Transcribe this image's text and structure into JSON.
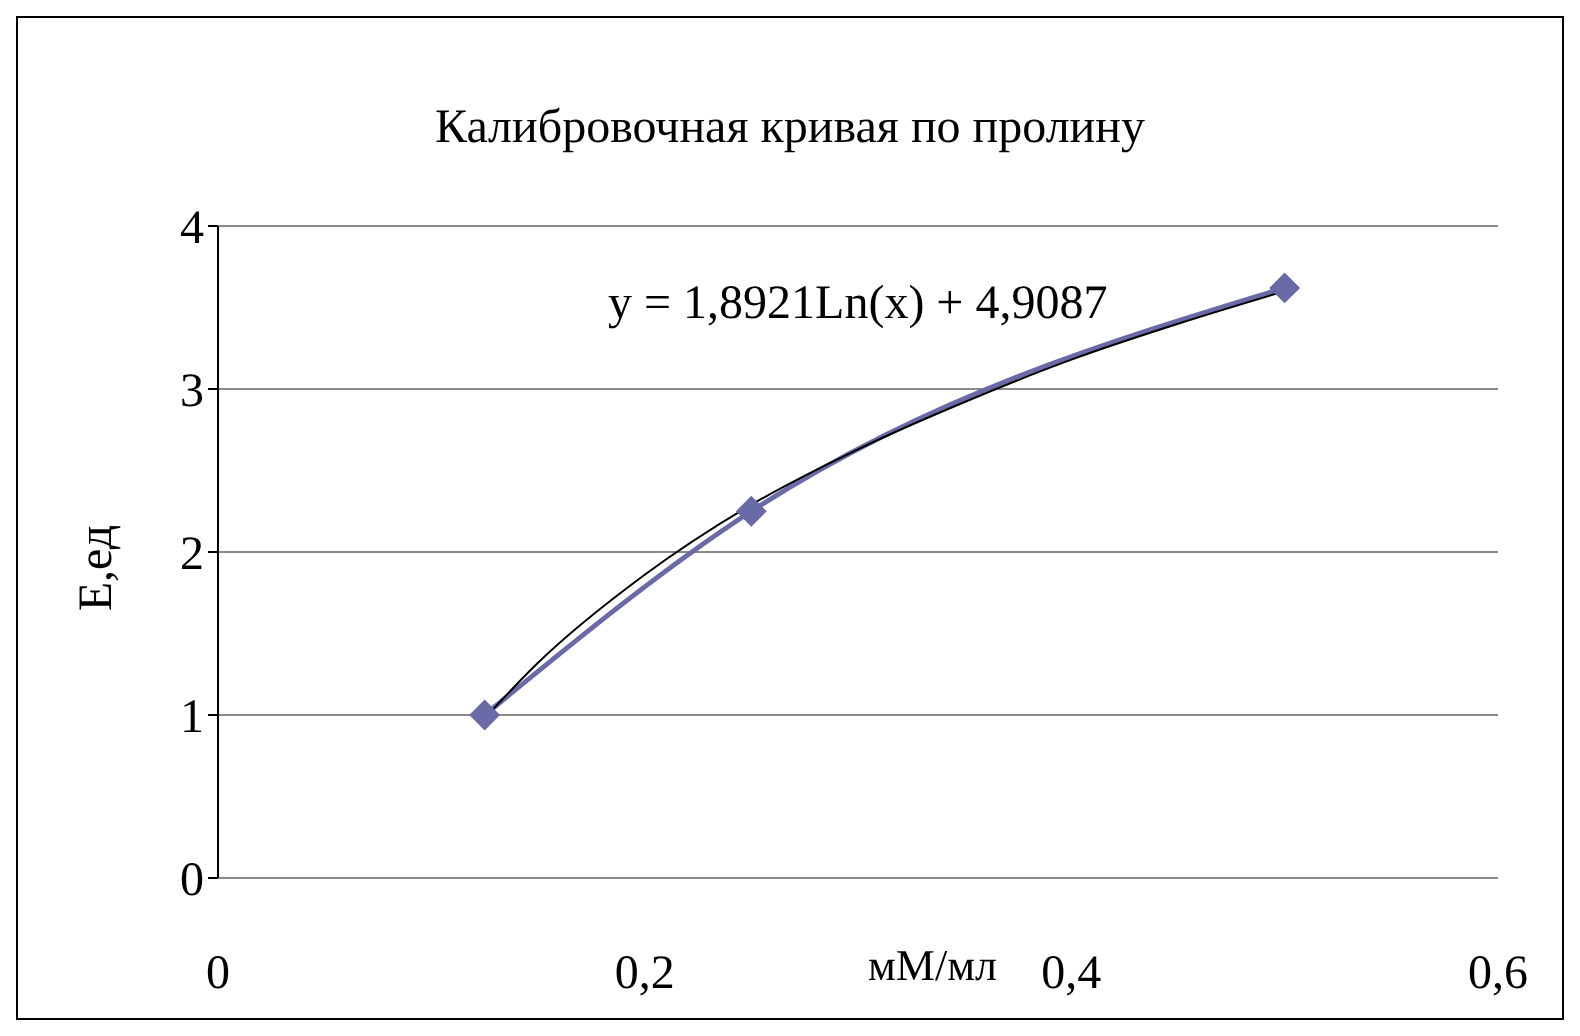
{
  "chart_data": {
    "type": "line",
    "title": "Калибровочная кривая по пролину",
    "xlabel": "мМ/мл",
    "ylabel": "Е,ед",
    "annotations": [
      "y = 1,8921Ln(x) + 4,9087"
    ],
    "xlim": [
      0,
      0.6
    ],
    "xticks": [
      0,
      {
        "value": 0.2,
        "label": "0,2"
      },
      {
        "value": 0.4,
        "label": "0,4"
      },
      {
        "value": 0.6,
        "label": "0,6"
      }
    ],
    "ylim": [
      0,
      4
    ],
    "yticks": [
      0,
      1,
      2,
      3,
      4
    ],
    "grid": "y",
    "marker": "diamond",
    "line_style": "solid",
    "series": [
      {
        "color": "#6a6aa6",
        "x": [
          0.125,
          0.25,
          0.5
        ],
        "values": [
          1,
          2.25,
          3.62
        ]
      },
      {
        "color": "#000000",
        "marker": "none",
        "x": [
          0.125,
          0.15,
          0.2,
          0.25,
          0.3,
          0.35,
          0.4,
          0.45,
          0.5
        ],
        "values": [
          0.98,
          1.32,
          1.86,
          2.29,
          2.63,
          2.92,
          3.18,
          3.4,
          3.6
        ]
      }
    ]
  }
}
